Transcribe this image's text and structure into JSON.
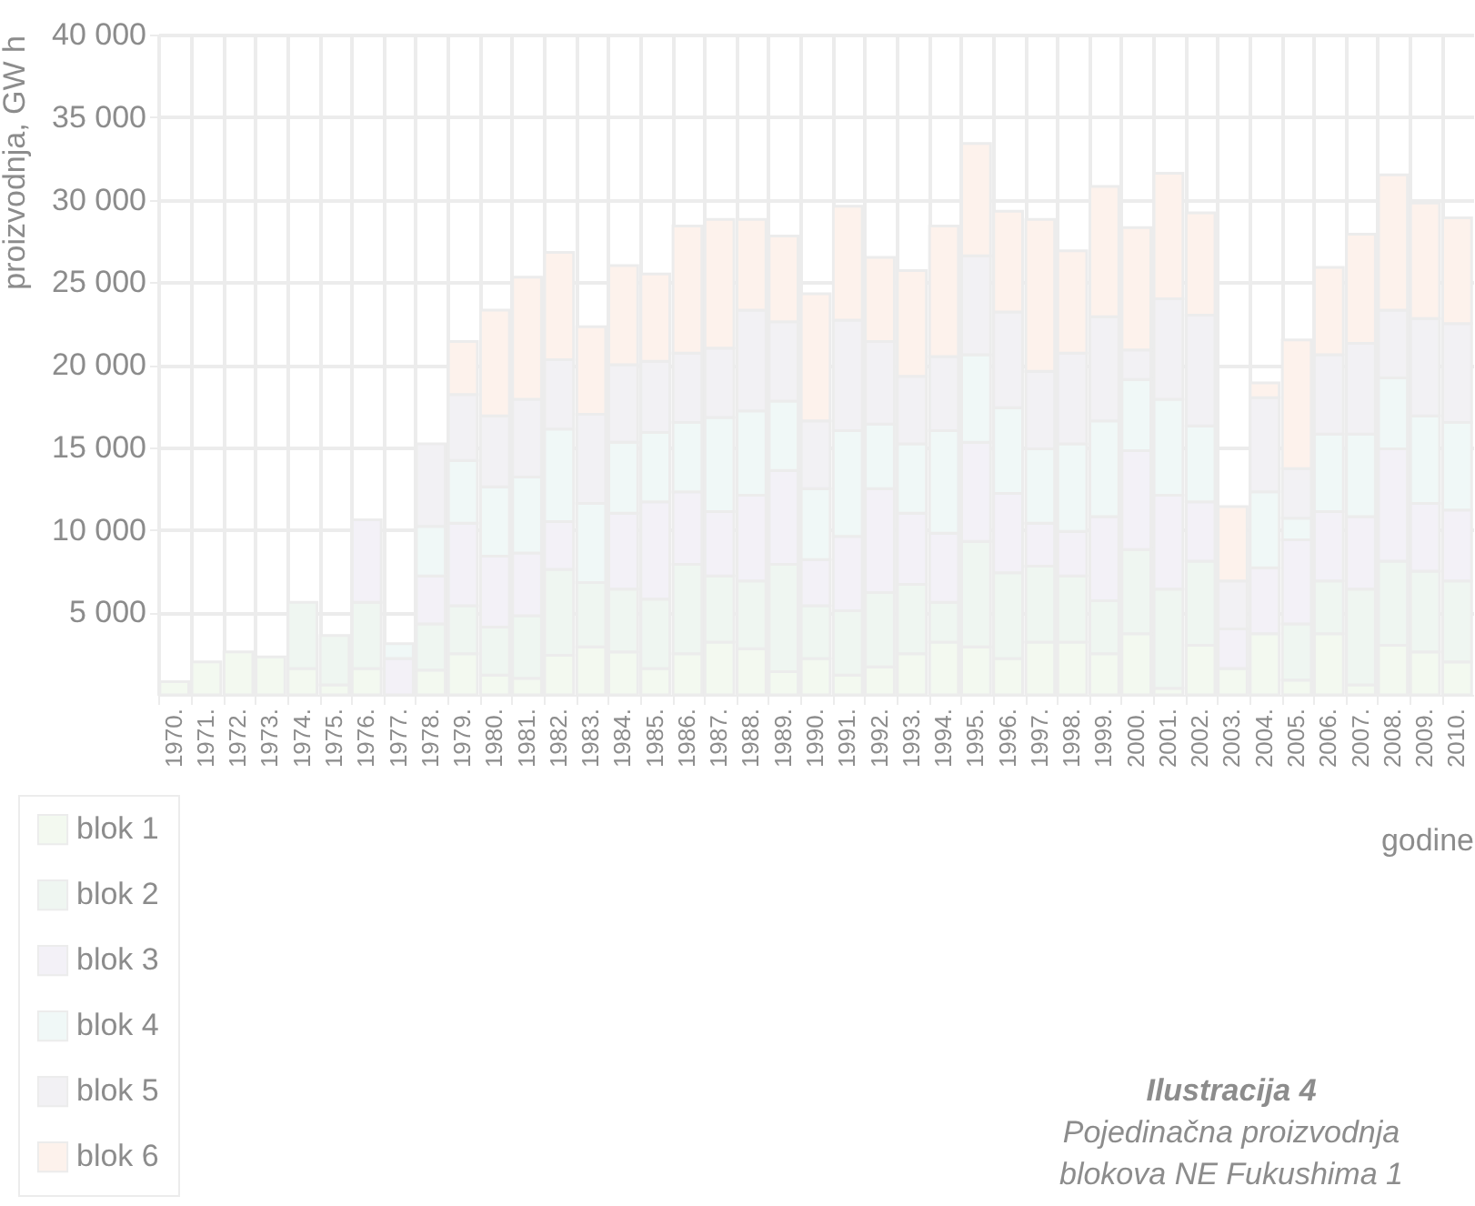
{
  "chart_data": {
    "type": "bar",
    "stacked": true,
    "xlabel": "godine",
    "ylabel": "proizvodnja, GW h",
    "categories": [
      "1970.",
      "1971.",
      "1972.",
      "1973.",
      "1974.",
      "1975.",
      "1976.",
      "1977.",
      "1978.",
      "1979.",
      "1980.",
      "1981.",
      "1982.",
      "1983.",
      "1984.",
      "1985.",
      "1986.",
      "1987.",
      "1988.",
      "1989.",
      "1990.",
      "1991.",
      "1992.",
      "1993.",
      "1994.",
      "1995.",
      "1996.",
      "1997.",
      "1998.",
      "1999.",
      "2000.",
      "2001.",
      "2002.",
      "2003.",
      "2004.",
      "2005.",
      "2006.",
      "2007.",
      "2008.",
      "2009.",
      "2010."
    ],
    "series": [
      {
        "name": "blok 1",
        "color": "#f3f9f0",
        "values": [
          800,
          2000,
          2600,
          2300,
          1600,
          600,
          1600,
          0,
          1500,
          2500,
          1200,
          1000,
          2400,
          2900,
          2600,
          1600,
          2500,
          3200,
          2800,
          1400,
          2200,
          1200,
          1700,
          2500,
          3200,
          2900,
          2200,
          3200,
          3200,
          2500,
          3700,
          400,
          3000,
          1600,
          3700,
          900,
          3700,
          600,
          3000,
          2600,
          2000
        ]
      },
      {
        "name": "blok 2",
        "color": "#eff6f1",
        "values": [
          0,
          0,
          0,
          0,
          4000,
          3000,
          4000,
          0,
          2800,
          2900,
          2900,
          3800,
          5200,
          3900,
          3800,
          4200,
          5400,
          4000,
          4100,
          6500,
          3200,
          3900,
          4500,
          4200,
          2400,
          6400,
          5200,
          4600,
          4000,
          3200,
          5100,
          6000,
          5100,
          0,
          0,
          3400,
          3200,
          5800,
          5100,
          4900,
          4900
        ]
      },
      {
        "name": "blok 3",
        "color": "#f3f1f7",
        "values": [
          0,
          0,
          0,
          0,
          0,
          0,
          5000,
          2200,
          2900,
          5000,
          4300,
          3800,
          2900,
          0,
          4600,
          5900,
          4400,
          3900,
          5200,
          5700,
          2800,
          4500,
          6300,
          4300,
          4200,
          6000,
          4800,
          2600,
          2700,
          5100,
          6000,
          5700,
          3600,
          2400,
          4000,
          5100,
          4200,
          4400,
          6800,
          4100,
          4300
        ]
      },
      {
        "name": "blok 4",
        "color": "#f0f8f7",
        "values": [
          0,
          0,
          0,
          0,
          0,
          0,
          0,
          900,
          3000,
          3800,
          4200,
          4600,
          5600,
          4800,
          4300,
          4200,
          4200,
          5700,
          5100,
          4200,
          4300,
          6400,
          3900,
          4200,
          6200,
          5300,
          5200,
          4500,
          5300,
          5800,
          4300,
          5800,
          4600,
          0,
          4600,
          1300,
          4700,
          5000,
          4300,
          5300,
          5300
        ]
      },
      {
        "name": "blok 5",
        "color": "#f2f1f4",
        "values": [
          0,
          0,
          0,
          0,
          0,
          0,
          0,
          0,
          5000,
          4000,
          4300,
          4700,
          4200,
          5400,
          4700,
          4300,
          4200,
          4200,
          6100,
          4800,
          4100,
          6700,
          5000,
          4100,
          4500,
          6000,
          5800,
          4700,
          5500,
          6300,
          1800,
          6100,
          6700,
          2900,
          5700,
          3000,
          4800,
          5500,
          4100,
          5900,
          6000
        ]
      },
      {
        "name": "blok 6",
        "color": "#fdf2ec",
        "values": [
          0,
          0,
          0,
          0,
          0,
          0,
          0,
          0,
          0,
          3200,
          6400,
          7400,
          6500,
          5300,
          6000,
          5300,
          7700,
          7800,
          5500,
          5200,
          7700,
          6900,
          5100,
          6400,
          7900,
          6800,
          6100,
          9200,
          6200,
          7900,
          7400,
          7600,
          6200,
          4500,
          900,
          7800,
          5300,
          6600,
          8200,
          7000,
          6400
        ]
      }
    ],
    "ylim": [
      0,
      40000
    ],
    "yticks": [
      {
        "value": 5000,
        "label": "5 000"
      },
      {
        "value": 10000,
        "label": "10 000"
      },
      {
        "value": 15000,
        "label": "15 000"
      },
      {
        "value": 20000,
        "label": "20 000"
      },
      {
        "value": 25000,
        "label": "25 000"
      },
      {
        "value": 30000,
        "label": "30 000"
      },
      {
        "value": 35000,
        "label": "35 000"
      },
      {
        "value": 40000,
        "label": "40 000"
      }
    ],
    "grid": true,
    "legend": "bottom left",
    "annotations": [
      "Ilustracija 4",
      "Pojedinačna proizvodnja blokova  NE Fukushima 1"
    ]
  }
}
